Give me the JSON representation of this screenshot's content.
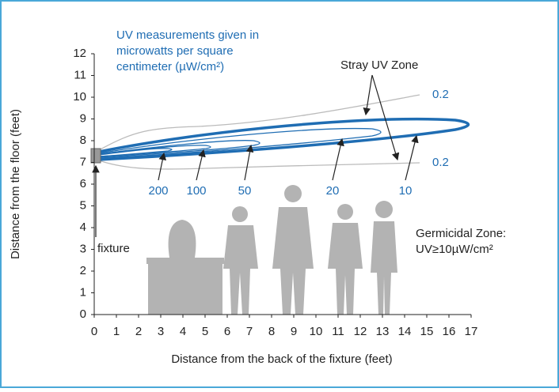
{
  "chart_data": {
    "type": "contour",
    "x_label": "Distance from the back of the fixture (feet)",
    "y_label": "Distance from the floor (feet)",
    "xlim": [
      0,
      17
    ],
    "xticks": [
      0,
      1,
      2,
      3,
      4,
      5,
      6,
      7,
      8,
      9,
      10,
      11,
      12,
      13,
      14,
      15,
      16,
      17
    ],
    "ylim": [
      0,
      12
    ],
    "yticks": [
      0,
      1,
      2,
      3,
      4,
      5,
      6,
      7,
      8,
      9,
      10,
      11,
      12
    ],
    "note": [
      "UV measurements given in",
      "microwatts per square",
      "centimeter (µW/cm²)"
    ],
    "stray_label": "Stray UV Zone",
    "stray_levels": [
      0.2,
      0.2
    ],
    "contour_levels": [
      200,
      100,
      50,
      20,
      10
    ],
    "fixture_label": "fixture",
    "germicidal_label": [
      "Germicidal Zone:",
      "UV≥10µW/cm²"
    ]
  }
}
